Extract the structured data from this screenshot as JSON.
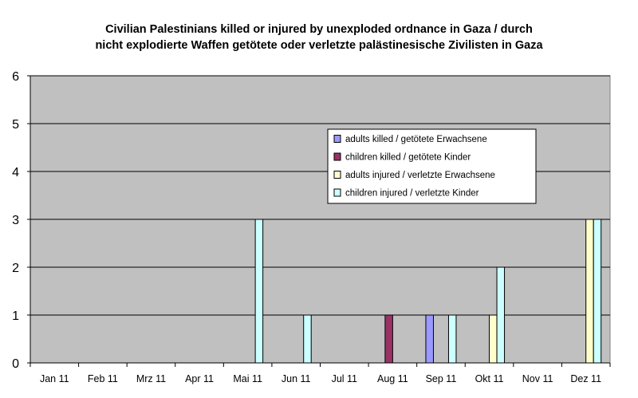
{
  "chart_data": {
    "type": "bar",
    "title_line1": "Civilian Palestinians killed or injured by unexploded ordnance in Gaza / durch",
    "title_line2": "nicht explodierte Waffen getötete oder verletzte palästinesische Zivilisten in Gaza",
    "categories": [
      "Jan 11",
      "Feb 11",
      "Mrz 11",
      "Apr 11",
      "Mai 11",
      "Jun 11",
      "Jul 11",
      "Aug 11",
      "Sep 11",
      "Okt 11",
      "Nov 11",
      "Dez 11"
    ],
    "series": [
      {
        "name": "adults killed / getötete Erwachsene",
        "color": "#9999ff",
        "values": [
          0,
          0,
          0,
          0,
          0,
          0,
          0,
          0,
          1,
          0,
          0,
          0
        ]
      },
      {
        "name": "children killed / getötete Kinder",
        "color": "#993366",
        "values": [
          0,
          0,
          0,
          0,
          0,
          0,
          0,
          1,
          0,
          0,
          0,
          0
        ]
      },
      {
        "name": "adults injured / verletzte Erwachsene",
        "color": "#ffffcc",
        "values": [
          0,
          0,
          0,
          0,
          0,
          0,
          0,
          0,
          0,
          1,
          0,
          3
        ]
      },
      {
        "name": "children injured / verletzte Kinder",
        "color": "#ccffff",
        "values": [
          0,
          0,
          0,
          0,
          3,
          1,
          0,
          0,
          1,
          2,
          0,
          3
        ]
      }
    ],
    "ylim": [
      0,
      6
    ],
    "yticks": [
      "0",
      "1",
      "2",
      "3",
      "4",
      "5",
      "6"
    ],
    "grid": true,
    "plot_background": "#c0c0c0",
    "legend_position": "upper-right"
  }
}
